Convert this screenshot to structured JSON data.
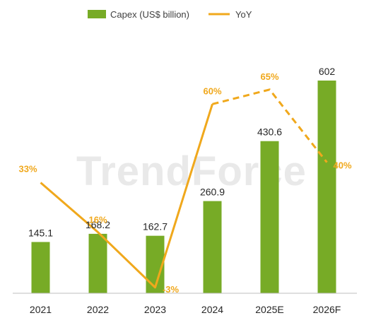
{
  "colors": {
    "bar": "#77ab26",
    "line": "#f0a81c",
    "axis": "#bfbfbf",
    "watermark": "#e9e9e9"
  },
  "watermark": {
    "text": "TrendForce"
  },
  "chart_data": {
    "type": "bar",
    "categories": [
      "2021",
      "2022",
      "2023",
      "2024",
      "2025E",
      "2026F"
    ],
    "series": [
      {
        "name": "Capex (US$ billion)",
        "type": "bar",
        "values": [
          145.1,
          168.2,
          162.7,
          260.9,
          430.6,
          602
        ],
        "labels": [
          "145.1",
          "168.2",
          "162.7",
          "260.9",
          "430.6",
          "602"
        ]
      },
      {
        "name": "YoY",
        "type": "line",
        "values": [
          33,
          16,
          -3,
          60,
          65,
          40
        ],
        "labels": [
          "33%",
          "16%",
          "-3%",
          "60%",
          "65%",
          "40%"
        ],
        "forecast_from_index": 3
      }
    ],
    "y_left_range": [
      0,
      700
    ],
    "y_right_range": [
      -5,
      80
    ],
    "legend": "top",
    "grid": false
  }
}
